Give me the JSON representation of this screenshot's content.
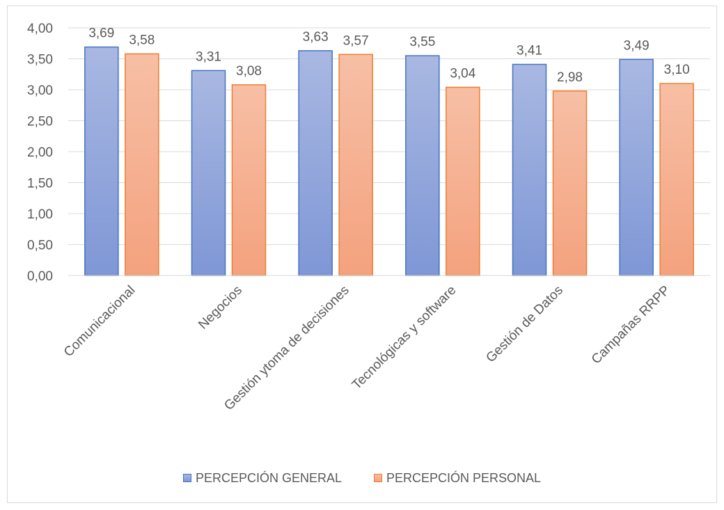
{
  "chart_data": {
    "type": "bar",
    "categories": [
      "Comunicacional",
      "Negocios",
      "Gestión ytoma de decisiones",
      "Tecnológicas y software",
      "Gestión de Datos",
      "Campañas RRPP"
    ],
    "series": [
      {
        "name": "PERCEPCIÓN GENERAL",
        "values": [
          3.69,
          3.31,
          3.63,
          3.55,
          3.41,
          3.49
        ],
        "labels": [
          "3,69",
          "3,31",
          "3,63",
          "3,55",
          "3,41",
          "3,49"
        ],
        "fill_top": "#a9b8e2",
        "fill_bottom": "#7f97d6",
        "stroke": "#4472c4"
      },
      {
        "name": "PERCEPCIÓN PERSONAL",
        "values": [
          3.58,
          3.08,
          3.57,
          3.04,
          2.98,
          3.1
        ],
        "labels": [
          "3,58",
          "3,08",
          "3,57",
          "3,04",
          "2,98",
          "3,10"
        ],
        "fill_top": "#f7bfa5",
        "fill_bottom": "#f4a27e",
        "stroke": "#ed7d31"
      }
    ],
    "ylim": [
      0,
      4
    ],
    "yticks": [
      "0,00",
      "0,50",
      "1,00",
      "1,50",
      "2,00",
      "2,50",
      "3,00",
      "3,50",
      "4,00"
    ],
    "grid": true,
    "legend_position": "bottom",
    "title": "",
    "xlabel": "",
    "ylabel": ""
  },
  "colors": {
    "gridline": "#d9d9d9",
    "text": "#595959"
  }
}
